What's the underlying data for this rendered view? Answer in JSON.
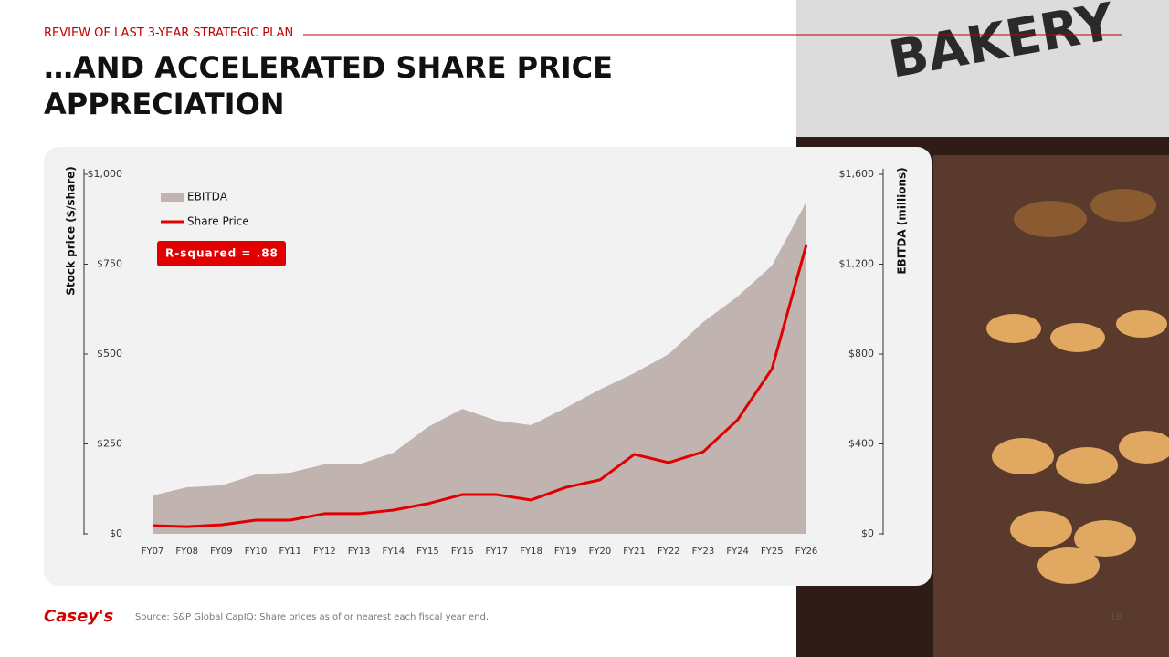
{
  "header": {
    "section": "REVIEW OF LAST 3-YEAR STRATEGIC PLAN",
    "title": "…AND ACCELERATED SHARE PRICE APPRECIATION"
  },
  "photo": {
    "sign": "BAKERY"
  },
  "footer": {
    "logo": "Casey's",
    "source": "Source: S&P Global CapIQ; Share prices as of or nearest each fiscal year end.",
    "page": "18"
  },
  "chart_data": {
    "type": "area-line",
    "ylabel": "Stock price ($/share)",
    "y2label": "EBITDA (millions)",
    "annotation": "R-squared = .88",
    "categories": [
      "FY07",
      "FY08",
      "FY09",
      "FY10",
      "FY11",
      "FY12",
      "FY13",
      "FY14",
      "FY15",
      "FY16",
      "FY17",
      "FY18",
      "FY19",
      "FY20",
      "FY21",
      "FY22",
      "FY23",
      "FY24",
      "FY25",
      "FY26"
    ],
    "series": [
      {
        "name": "EBITDA",
        "color": "#c0b3b0",
        "axis": "y2",
        "values": [
          170,
          207,
          215,
          264,
          272,
          309,
          309,
          361,
          475,
          556,
          504,
          483,
          560,
          642,
          715,
          800,
          942,
          1056,
          1194,
          1478
        ]
      },
      {
        "name": "Share Price",
        "color": "#e00000",
        "axis": "y",
        "values": [
          23,
          20,
          25,
          38,
          38,
          56,
          56,
          66,
          84,
          109,
          109,
          94,
          129,
          150,
          221,
          198,
          228,
          317,
          459,
          805
        ]
      }
    ],
    "ylim": [
      0,
      1000
    ],
    "yticks": [
      {
        "value": 0,
        "label": "$0"
      },
      {
        "value": 250,
        "label": "$250"
      },
      {
        "value": 500,
        "label": "$500"
      },
      {
        "value": 750,
        "label": "$750"
      },
      {
        "value": 1000,
        "label": "$1,000"
      }
    ],
    "y2lim": [
      0,
      1600
    ],
    "y2ticks": [
      {
        "value": 0,
        "label": "$0"
      },
      {
        "value": 400,
        "label": "$400"
      },
      {
        "value": 800,
        "label": "$800"
      },
      {
        "value": 1200,
        "label": "$1,200"
      },
      {
        "value": 1600,
        "label": "$1,600"
      }
    ],
    "grid": false
  }
}
